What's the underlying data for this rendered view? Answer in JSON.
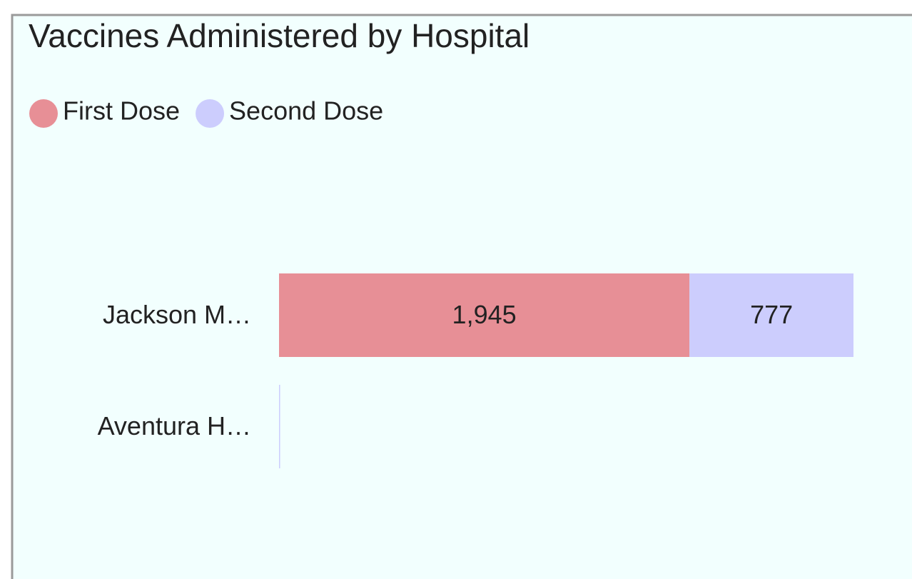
{
  "chart_data": {
    "type": "stacked-bar-horizontal",
    "title": "Vaccines Administered by Hospital",
    "categories": [
      "Jackson M…",
      "Aventura H…"
    ],
    "series": [
      {
        "name": "First Dose",
        "color": "#e78f96",
        "values": [
          1945,
          0
        ],
        "value_labels": [
          "1,945",
          null
        ]
      },
      {
        "name": "Second Dose",
        "color": "#cccdfd",
        "values": [
          777,
          4
        ],
        "value_labels": [
          "777",
          null
        ]
      }
    ],
    "xlim": [
      0,
      2722
    ],
    "legend": "top-left"
  }
}
